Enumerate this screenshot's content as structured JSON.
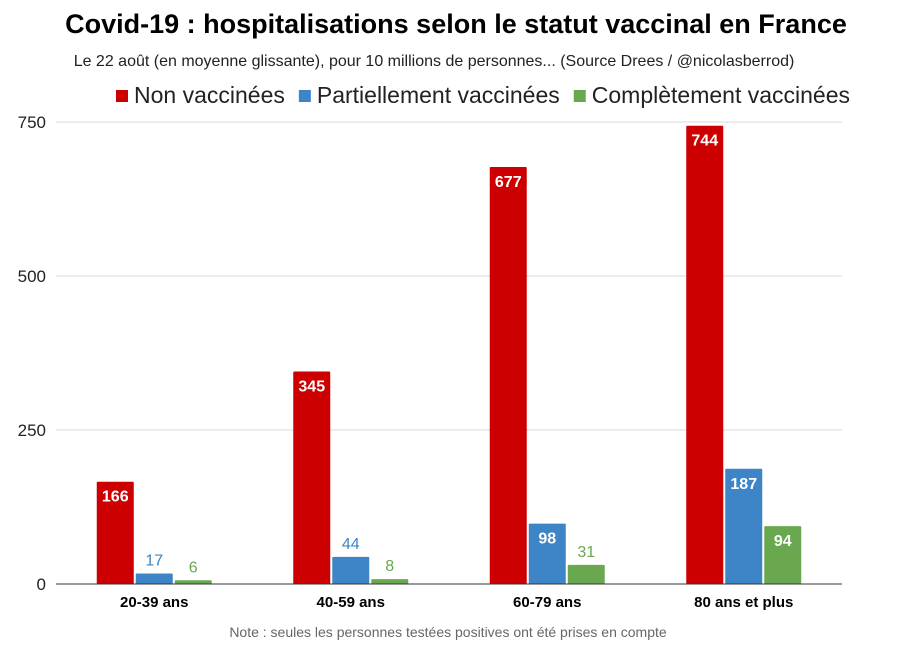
{
  "chart_data": {
    "type": "bar",
    "title": "Covid-19 : hospitalisations selon le statut vaccinal en France",
    "subtitle": "Le 22 août (en moyenne glissante), pour 10 millions de personnes... (Source Drees / @nicolasberrod)",
    "note": "Note : seules les personnes testées positives ont été prises en compte",
    "categories": [
      "20-39 ans",
      "40-59 ans",
      "60-79 ans",
      "80 ans et plus"
    ],
    "series": [
      {
        "name": "Non vaccinées",
        "color": "#cc0000",
        "values": [
          166,
          345,
          677,
          744
        ]
      },
      {
        "name": "Partiellement vaccinées",
        "color": "#3d85c6",
        "values": [
          17,
          44,
          98,
          187
        ]
      },
      {
        "name": "Complètement vaccinées",
        "color": "#6aa84f",
        "values": [
          6,
          8,
          31,
          94
        ]
      }
    ],
    "yticks": [
      0,
      250,
      500,
      750
    ],
    "ylim": [
      0,
      750
    ],
    "xlabel": "",
    "ylabel": "",
    "grid": true,
    "legend_position": "top-right"
  }
}
